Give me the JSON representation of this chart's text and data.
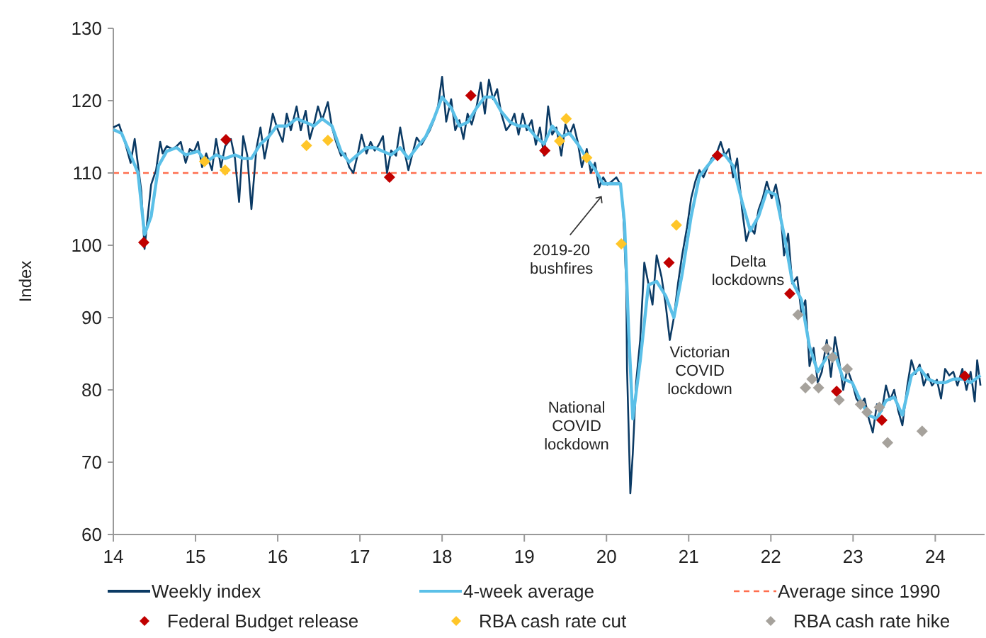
{
  "chart_data": {
    "type": "line",
    "ylabel": "Index",
    "xlim": [
      14,
      24.6
    ],
    "xticks": [
      14,
      15,
      16,
      17,
      18,
      19,
      20,
      21,
      22,
      23,
      24
    ],
    "ylim": [
      60,
      130
    ],
    "yticks": [
      60,
      70,
      80,
      90,
      100,
      110,
      120,
      130
    ],
    "grid": false,
    "legend": "bottom",
    "line_style": "solid",
    "series": [
      {
        "name": "Weekly index",
        "marker": "none",
        "color": "#0b3a64",
        "x": [
          14.0,
          14.07,
          14.14,
          14.21,
          14.26,
          14.34,
          14.38,
          14.41,
          14.46,
          14.52,
          14.57,
          14.6,
          14.65,
          14.72,
          14.77,
          14.82,
          14.88,
          14.93,
          14.98,
          15.03,
          15.08,
          15.13,
          15.2,
          15.25,
          15.31,
          15.36,
          15.43,
          15.48,
          15.53,
          15.58,
          15.63,
          15.68,
          15.74,
          15.79,
          15.84,
          15.89,
          15.94,
          15.99,
          16.06,
          16.11,
          16.16,
          16.23,
          16.28,
          16.34,
          16.39,
          16.44,
          16.49,
          16.54,
          16.61,
          16.66,
          16.71,
          16.77,
          16.82,
          16.87,
          16.92,
          16.97,
          17.02,
          17.08,
          17.13,
          17.18,
          17.23,
          17.28,
          17.33,
          17.38,
          17.44,
          17.49,
          17.54,
          17.59,
          17.64,
          17.69,
          17.75,
          17.8,
          17.85,
          17.9,
          17.95,
          18.0,
          18.05,
          18.11,
          18.16,
          18.21,
          18.26,
          18.31,
          18.36,
          18.42,
          18.47,
          18.52,
          18.57,
          18.62,
          18.67,
          18.72,
          18.78,
          18.83,
          18.88,
          18.93,
          18.98,
          19.03,
          19.09,
          19.14,
          19.19,
          19.24,
          19.29,
          19.34,
          19.39,
          19.45,
          19.5,
          19.55,
          19.6,
          19.65,
          19.7,
          19.76,
          19.81,
          19.86,
          19.91,
          19.96,
          20.01,
          20.06,
          20.12,
          20.17,
          20.2,
          20.24,
          20.25,
          20.29,
          20.32,
          20.36,
          20.41,
          20.46,
          20.51,
          20.56,
          20.61,
          20.67,
          20.72,
          20.77,
          20.82,
          20.87,
          20.92,
          20.98,
          21.03,
          21.08,
          21.13,
          21.18,
          21.23,
          21.28,
          21.34,
          21.39,
          21.44,
          21.49,
          21.54,
          21.59,
          21.65,
          21.7,
          21.75,
          21.8,
          21.85,
          21.9,
          21.95,
          22.01,
          22.06,
          22.11,
          22.16,
          22.21,
          22.26,
          22.32,
          22.37,
          22.42,
          22.47,
          22.52,
          22.57,
          22.62,
          22.68,
          22.73,
          22.78,
          22.83,
          22.88,
          22.93,
          22.99,
          23.04,
          23.09,
          23.14,
          23.19,
          23.24,
          23.29,
          23.35,
          23.4,
          23.45,
          23.5,
          23.55,
          23.6,
          23.66,
          23.71,
          23.76,
          23.81,
          23.86,
          23.91,
          23.96,
          24.02,
          24.07,
          24.12,
          24.17,
          24.22,
          24.27,
          24.33,
          24.38,
          24.43,
          24.48,
          24.51,
          24.55
        ],
        "values": [
          116.3,
          116.7,
          114.3,
          111.4,
          114.7,
          107.5,
          99.5,
          103,
          108.4,
          110.4,
          114.3,
          112.7,
          113.7,
          113.3,
          113.7,
          114.3,
          111.4,
          113.3,
          112.9,
          114.3,
          110.8,
          112.7,
          110.4,
          114.7,
          110.8,
          113.7,
          114.7,
          112,
          106,
          115.1,
          112.4,
          105,
          113.3,
          116.3,
          112,
          114.9,
          118.2,
          116.3,
          114.3,
          118.2,
          115.9,
          119.2,
          115.9,
          118.6,
          114.7,
          116.7,
          119.2,
          117.3,
          119.8,
          116.3,
          114.3,
          112.4,
          112.7,
          110.8,
          110,
          112.4,
          115.3,
          112.7,
          114.3,
          113.1,
          113.9,
          115.1,
          110,
          113.1,
          112.4,
          116.3,
          113.1,
          110.4,
          112.7,
          114.9,
          113.9,
          114.9,
          115.9,
          117.3,
          119.2,
          123.3,
          117.1,
          120.2,
          115.9,
          117.3,
          114.7,
          118.2,
          116.7,
          119.2,
          122.5,
          118.2,
          122.9,
          120.2,
          121.6,
          118.2,
          115.9,
          116.7,
          118.2,
          115.3,
          118.2,
          115.9,
          117.3,
          113.9,
          116.3,
          112.4,
          119.2,
          115.3,
          116.3,
          112.4,
          116.7,
          115.3,
          116.7,
          114.3,
          110.8,
          113.3,
          110,
          111.4,
          108,
          109.4,
          108.4,
          108.8,
          109.4,
          108.4,
          105.5,
          94.7,
          82.9,
          65.7,
          71.2,
          81,
          86.9,
          97.6,
          94.7,
          91.8,
          98.6,
          95.6,
          91.8,
          86.9,
          90,
          94.7,
          98.6,
          102.5,
          106.5,
          108.8,
          110.4,
          109.4,
          110.8,
          112,
          112.7,
          114.3,
          112.4,
          113.3,
          109.4,
          112,
          104.9,
          100.6,
          102.5,
          101.6,
          104.9,
          106.5,
          108.8,
          106.5,
          108.4,
          105.5,
          98.6,
          101.6,
          94.7,
          95.6,
          90.8,
          92.4,
          83.3,
          85.8,
          81,
          82.5,
          86.9,
          81.8,
          87.3,
          84.1,
          80,
          82.9,
          81,
          78.8,
          78,
          78.8,
          76.1,
          74.1,
          78,
          77.1,
          80.6,
          78.6,
          80,
          77.1,
          75.1,
          80.6,
          84.1,
          82.2,
          83.5,
          80.6,
          82.2,
          80.6,
          81.4,
          78.8,
          82.9,
          82,
          82.5,
          80.6,
          82.9,
          80,
          82.5,
          78.4,
          84.1,
          80.6
        ]
      },
      {
        "name": "4-week average",
        "marker": "none",
        "color": "#5bc0e8",
        "x": [
          14.0,
          14.1,
          14.21,
          14.3,
          14.38,
          14.46,
          14.55,
          14.65,
          14.77,
          14.88,
          15.03,
          15.13,
          15.25,
          15.36,
          15.48,
          15.58,
          15.68,
          15.79,
          15.89,
          15.99,
          16.11,
          16.23,
          16.34,
          16.44,
          16.54,
          16.66,
          16.77,
          16.87,
          16.97,
          17.08,
          17.18,
          17.28,
          17.38,
          17.49,
          17.59,
          17.69,
          17.8,
          17.9,
          18.0,
          18.11,
          18.21,
          18.31,
          18.42,
          18.52,
          18.62,
          18.72,
          18.83,
          18.93,
          19.03,
          19.14,
          19.24,
          19.34,
          19.45,
          19.55,
          19.65,
          19.76,
          19.86,
          19.96,
          20.06,
          20.17,
          20.22,
          20.27,
          20.32,
          20.41,
          20.51,
          20.61,
          20.72,
          20.82,
          20.92,
          21.03,
          21.13,
          21.23,
          21.34,
          21.44,
          21.54,
          21.65,
          21.75,
          21.85,
          21.95,
          22.06,
          22.16,
          22.26,
          22.37,
          22.47,
          22.57,
          22.68,
          22.78,
          22.88,
          22.99,
          23.09,
          23.19,
          23.29,
          23.4,
          23.5,
          23.6,
          23.71,
          23.81,
          23.91,
          24.02,
          24.12,
          24.22,
          24.33,
          24.43,
          24.55
        ],
        "values": [
          116,
          115.5,
          112.5,
          110,
          101.5,
          104,
          111,
          113,
          113.5,
          112.5,
          113,
          111.5,
          112.5,
          112,
          112.5,
          112,
          112,
          114,
          115,
          116.5,
          116.5,
          117.5,
          117,
          116.5,
          117.5,
          116.5,
          113,
          111.5,
          112.5,
          113.5,
          113.5,
          113,
          112.5,
          113.5,
          112,
          113.5,
          115,
          117.5,
          120.5,
          119,
          116.5,
          117,
          119,
          120.5,
          120.5,
          118.5,
          117,
          116.5,
          116.5,
          115,
          114,
          116.5,
          115,
          115.5,
          114,
          112,
          110.5,
          108.5,
          108.5,
          108.5,
          103,
          88,
          76,
          84,
          94.5,
          95,
          93,
          90,
          96,
          104,
          109.5,
          111,
          112.5,
          112.5,
          111,
          106,
          102,
          104,
          107.5,
          107,
          101.5,
          95,
          92.5,
          86,
          82.5,
          84.5,
          85,
          81.5,
          81,
          78.5,
          76.5,
          76,
          78.5,
          79,
          76.5,
          82,
          83,
          81.5,
          81,
          81,
          81.5,
          81.5,
          81,
          82
        ]
      },
      {
        "name": "Federal Budget release",
        "type": "scatter",
        "marker": "diamond",
        "color": "#c00000",
        "x": [
          14.37,
          15.37,
          17.36,
          18.35,
          19.25,
          20.76,
          21.35,
          22.23,
          22.8,
          23.35,
          24.36
        ],
        "values": [
          100.4,
          114.6,
          109.4,
          120.7,
          113.1,
          97.6,
          112.4,
          93.3,
          79.8,
          75.8,
          81.9
        ]
      },
      {
        "name": "RBA cash rate cut",
        "type": "scatter",
        "marker": "diamond",
        "color": "#ffc629",
        "x": [
          15.11,
          15.36,
          16.35,
          16.61,
          19.43,
          19.51,
          19.76,
          20.18,
          20.85
        ],
        "values": [
          111.6,
          110.4,
          113.8,
          114.5,
          114.4,
          117.5,
          112.1,
          100.2,
          102.8
        ]
      },
      {
        "name": "RBA cash rate hike",
        "type": "scatter",
        "marker": "diamond",
        "color": "#a6a29c",
        "x": [
          22.33,
          22.42,
          22.5,
          22.58,
          22.68,
          22.75,
          22.83,
          22.93,
          23.09,
          23.17,
          23.32,
          23.42,
          23.84
        ],
        "values": [
          90.4,
          80.3,
          81.5,
          80.3,
          85.7,
          84.5,
          78.6,
          82.9,
          78,
          76.9,
          77.6,
          72.7,
          74.3
        ]
      }
    ],
    "ref_lines": [
      {
        "axis": "y",
        "value": 110,
        "label": "Average since 1990",
        "color": "#ff6f4f",
        "line_style": "dashed"
      }
    ],
    "annotations": [
      {
        "text": "2019-20 bushfires",
        "x": 19.97,
        "y": 107.5
      },
      "National COVID lockdown",
      "Victorian COVID lockdown",
      "Delta lockdowns"
    ]
  }
}
